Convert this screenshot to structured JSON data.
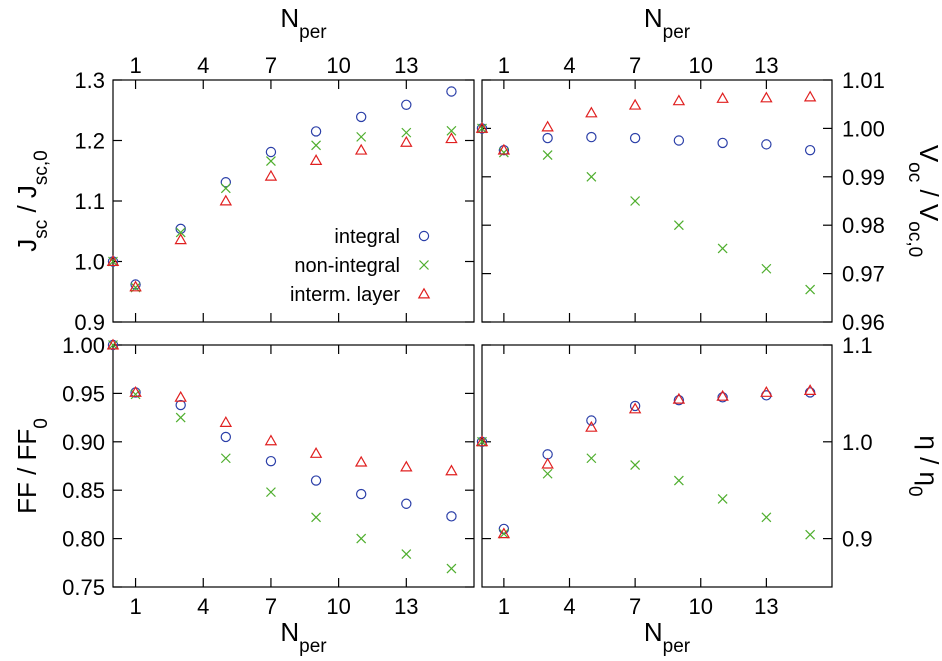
{
  "chart_data": [
    {
      "type": "scatter",
      "panel": "top-left",
      "ylabel": "J_sc / J_sc,0",
      "ylim": [
        0.9,
        1.3
      ],
      "yticks": [
        "0.9",
        "1.0",
        "1.1",
        "1.2",
        "1.3"
      ],
      "ytick_values": [
        0.9,
        1.0,
        1.1,
        1.2,
        1.3
      ],
      "xlabel_top": "N_per",
      "xticks": [
        "1",
        "4",
        "7",
        "10",
        "13"
      ],
      "legend": {
        "position": "bottom-right",
        "entries": [
          "integral",
          "non-integral",
          "interm. layer"
        ]
      },
      "series": [
        {
          "name": "integral",
          "x": [
            0,
            1,
            3,
            5,
            7,
            9,
            11,
            13,
            15
          ],
          "y": [
            1.0,
            0.962,
            1.054,
            1.131,
            1.181,
            1.215,
            1.239,
            1.259,
            1.281
          ]
        },
        {
          "name": "non-integral",
          "x": [
            0,
            1,
            3,
            5,
            7,
            9,
            11,
            13,
            15
          ],
          "y": [
            1.0,
            0.957,
            1.048,
            1.121,
            1.166,
            1.192,
            1.206,
            1.213,
            1.216
          ]
        },
        {
          "name": "interm. layer",
          "x": [
            0,
            1,
            3,
            5,
            7,
            9,
            11,
            13,
            15
          ],
          "y": [
            1.0,
            0.958,
            1.036,
            1.1,
            1.141,
            1.167,
            1.184,
            1.197,
            1.203
          ]
        }
      ]
    },
    {
      "type": "scatter",
      "panel": "top-right",
      "ylabel": "V_oc / V_oc,0",
      "ylim": [
        0.96,
        1.01
      ],
      "yticks": [
        "0.96",
        "0.97",
        "0.98",
        "0.99",
        "1.00",
        "1.01"
      ],
      "ytick_values": [
        0.96,
        0.97,
        0.98,
        0.99,
        1.0,
        1.01
      ],
      "xlabel_top": "N_per",
      "xticks": [
        "1",
        "4",
        "7",
        "10",
        "13"
      ],
      "series": [
        {
          "name": "integral",
          "x": [
            0,
            1,
            3,
            5,
            7,
            9,
            11,
            13,
            15
          ],
          "y": [
            1.0,
            0.9955,
            0.998,
            0.9982,
            0.998,
            0.9975,
            0.997,
            0.9967,
            0.9955
          ]
        },
        {
          "name": "non-integral",
          "x": [
            0,
            1,
            3,
            5,
            7,
            9,
            11,
            13,
            15
          ],
          "y": [
            1.0,
            0.995,
            0.9945,
            0.99,
            0.985,
            0.98,
            0.9752,
            0.971,
            0.9667
          ]
        },
        {
          "name": "interm. layer",
          "x": [
            0,
            1,
            3,
            5,
            7,
            9,
            11,
            13,
            15
          ],
          "y": [
            1.0,
            0.9955,
            1.0003,
            1.0032,
            1.0048,
            1.0057,
            1.0062,
            1.0063,
            1.0065
          ]
        }
      ]
    },
    {
      "type": "scatter",
      "panel": "bottom-left",
      "ylabel": "FF / FF_0",
      "ylim": [
        0.75,
        1.0
      ],
      "yticks": [
        "0.75",
        "0.80",
        "0.85",
        "0.90",
        "0.95",
        "1.00"
      ],
      "ytick_values": [
        0.75,
        0.8,
        0.85,
        0.9,
        0.95,
        1.0
      ],
      "xlabel": "N_per",
      "xticks": [
        "1",
        "4",
        "7",
        "10",
        "13"
      ],
      "series": [
        {
          "name": "integral",
          "x": [
            0,
            1,
            3,
            5,
            7,
            9,
            11,
            13,
            15
          ],
          "y": [
            1.0,
            0.951,
            0.938,
            0.905,
            0.88,
            0.86,
            0.846,
            0.836,
            0.823
          ]
        },
        {
          "name": "non-integral",
          "x": [
            0,
            1,
            3,
            5,
            7,
            9,
            11,
            13,
            15
          ],
          "y": [
            1.0,
            0.949,
            0.925,
            0.883,
            0.848,
            0.822,
            0.8,
            0.784,
            0.769
          ]
        },
        {
          "name": "interm. layer",
          "x": [
            0,
            1,
            3,
            5,
            7,
            9,
            11,
            13,
            15
          ],
          "y": [
            1.0,
            0.951,
            0.946,
            0.92,
            0.901,
            0.888,
            0.879,
            0.874,
            0.87
          ]
        }
      ]
    },
    {
      "type": "scatter",
      "panel": "bottom-right",
      "ylabel": "η / η_0",
      "ylim": [
        0.85,
        1.1
      ],
      "yticks": [
        "0.9",
        "1.0",
        "1.1"
      ],
      "ytick_values": [
        0.9,
        1.0,
        1.1
      ],
      "xlabel": "N_per",
      "xticks": [
        "1",
        "4",
        "7",
        "10",
        "13"
      ],
      "series": [
        {
          "name": "integral",
          "x": [
            0,
            1,
            3,
            5,
            7,
            9,
            11,
            13,
            15
          ],
          "y": [
            1.0,
            0.91,
            0.987,
            1.022,
            1.037,
            1.043,
            1.046,
            1.048,
            1.051
          ]
        },
        {
          "name": "non-integral",
          "x": [
            0,
            1,
            3,
            5,
            7,
            9,
            11,
            13,
            15
          ],
          "y": [
            1.0,
            0.905,
            0.967,
            0.983,
            0.976,
            0.96,
            0.941,
            0.922,
            0.904
          ]
        },
        {
          "name": "interm. layer",
          "x": [
            0,
            1,
            3,
            5,
            7,
            9,
            11,
            13,
            15
          ],
          "y": [
            1.0,
            0.905,
            0.977,
            1.015,
            1.034,
            1.044,
            1.047,
            1.051,
            1.053
          ]
        }
      ]
    }
  ],
  "styles": {
    "integral": {
      "marker": "circle",
      "color": "#2b3fa8"
    },
    "non-integral": {
      "marker": "cross",
      "color": "#4fae2e"
    },
    "interm. layer": {
      "marker": "triangle",
      "color": "#e02020"
    }
  }
}
